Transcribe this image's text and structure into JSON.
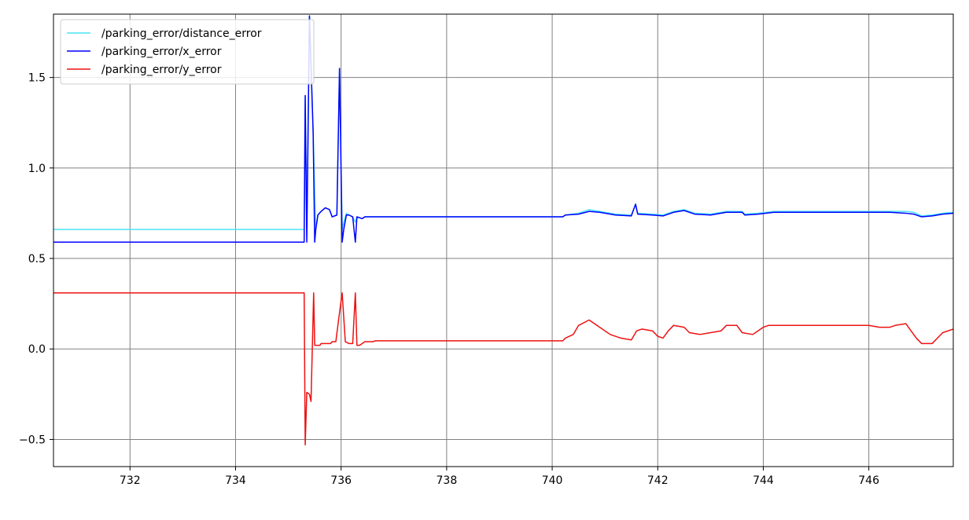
{
  "chart_data": {
    "type": "line",
    "title": "",
    "xlabel": "",
    "ylabel": "",
    "xlim": [
      730.55,
      747.6
    ],
    "ylim": [
      -0.65,
      1.85
    ],
    "xticks": [
      732,
      734,
      736,
      738,
      740,
      742,
      744,
      746
    ],
    "yticks": [
      -0.5,
      0.0,
      0.5,
      1.0,
      1.5
    ],
    "xtick_labels": [
      "732",
      "734",
      "736",
      "738",
      "740",
      "742",
      "744",
      "746"
    ],
    "ytick_labels": [
      "−0.5",
      "0.0",
      "0.5",
      "1.0",
      "1.5"
    ],
    "grid": true,
    "legend_position": "top-left",
    "series": [
      {
        "name": "/parking_error/distance_error",
        "color": "#4de4f5",
        "points": [
          [
            730.55,
            0.66
          ],
          [
            735.3,
            0.66
          ],
          [
            735.32,
            1.4
          ],
          [
            735.35,
            0.66
          ],
          [
            735.4,
            1.84
          ],
          [
            735.47,
            1.2
          ],
          [
            735.52,
            0.66
          ],
          [
            735.56,
            0.74
          ],
          [
            735.62,
            0.76
          ],
          [
            735.7,
            0.78
          ],
          [
            735.78,
            0.77
          ],
          [
            735.83,
            0.73
          ],
          [
            735.92,
            0.74
          ],
          [
            735.97,
            1.55
          ],
          [
            736.02,
            0.66
          ],
          [
            736.05,
            0.7
          ],
          [
            736.1,
            0.75
          ],
          [
            736.15,
            0.74
          ],
          [
            736.22,
            0.73
          ],
          [
            736.27,
            0.7
          ],
          [
            736.3,
            0.73
          ],
          [
            736.4,
            0.72
          ],
          [
            736.45,
            0.73
          ],
          [
            737.0,
            0.73
          ],
          [
            740.2,
            0.73
          ],
          [
            740.25,
            0.74
          ],
          [
            740.5,
            0.75
          ],
          [
            740.7,
            0.77
          ],
          [
            740.9,
            0.76
          ],
          [
            741.2,
            0.745
          ],
          [
            741.5,
            0.74
          ],
          [
            741.58,
            0.8
          ],
          [
            741.62,
            0.75
          ],
          [
            741.9,
            0.745
          ],
          [
            742.1,
            0.74
          ],
          [
            742.3,
            0.76
          ],
          [
            742.5,
            0.77
          ],
          [
            742.7,
            0.75
          ],
          [
            743.0,
            0.745
          ],
          [
            743.3,
            0.76
          ],
          [
            743.6,
            0.76
          ],
          [
            743.65,
            0.745
          ],
          [
            743.9,
            0.75
          ],
          [
            744.2,
            0.76
          ],
          [
            744.6,
            0.76
          ],
          [
            745.0,
            0.76
          ],
          [
            745.5,
            0.76
          ],
          [
            746.0,
            0.76
          ],
          [
            746.4,
            0.76
          ],
          [
            746.7,
            0.76
          ],
          [
            746.85,
            0.755
          ],
          [
            747.0,
            0.735
          ],
          [
            747.2,
            0.74
          ],
          [
            747.4,
            0.75
          ],
          [
            747.6,
            0.755
          ]
        ]
      },
      {
        "name": "/parking_error/x_error",
        "color": "#0000ff",
        "points": [
          [
            730.55,
            0.59
          ],
          [
            735.3,
            0.59
          ],
          [
            735.32,
            1.4
          ],
          [
            735.35,
            0.59
          ],
          [
            735.4,
            1.84
          ],
          [
            735.47,
            1.2
          ],
          [
            735.5,
            0.59
          ],
          [
            735.52,
            0.66
          ],
          [
            735.56,
            0.74
          ],
          [
            735.62,
            0.76
          ],
          [
            735.7,
            0.78
          ],
          [
            735.78,
            0.77
          ],
          [
            735.83,
            0.73
          ],
          [
            735.92,
            0.74
          ],
          [
            735.97,
            1.55
          ],
          [
            736.02,
            0.59
          ],
          [
            736.05,
            0.66
          ],
          [
            736.1,
            0.74
          ],
          [
            736.15,
            0.74
          ],
          [
            736.22,
            0.73
          ],
          [
            736.27,
            0.59
          ],
          [
            736.3,
            0.73
          ],
          [
            736.4,
            0.72
          ],
          [
            736.45,
            0.73
          ],
          [
            737.0,
            0.73
          ],
          [
            740.2,
            0.73
          ],
          [
            740.25,
            0.74
          ],
          [
            740.5,
            0.745
          ],
          [
            740.7,
            0.76
          ],
          [
            740.9,
            0.755
          ],
          [
            741.2,
            0.74
          ],
          [
            741.5,
            0.735
          ],
          [
            741.58,
            0.8
          ],
          [
            741.62,
            0.745
          ],
          [
            741.9,
            0.74
          ],
          [
            742.1,
            0.735
          ],
          [
            742.3,
            0.755
          ],
          [
            742.5,
            0.765
          ],
          [
            742.7,
            0.745
          ],
          [
            743.0,
            0.74
          ],
          [
            743.3,
            0.755
          ],
          [
            743.6,
            0.755
          ],
          [
            743.65,
            0.74
          ],
          [
            743.9,
            0.745
          ],
          [
            744.2,
            0.755
          ],
          [
            744.6,
            0.755
          ],
          [
            745.0,
            0.755
          ],
          [
            745.5,
            0.755
          ],
          [
            746.0,
            0.755
          ],
          [
            746.4,
            0.755
          ],
          [
            746.7,
            0.75
          ],
          [
            746.85,
            0.745
          ],
          [
            747.0,
            0.73
          ],
          [
            747.2,
            0.735
          ],
          [
            747.4,
            0.745
          ],
          [
            747.6,
            0.75
          ]
        ]
      },
      {
        "name": "/parking_error/y_error",
        "color": "#ee1111",
        "points": [
          [
            730.55,
            0.31
          ],
          [
            735.3,
            0.31
          ],
          [
            735.32,
            -0.53
          ],
          [
            735.35,
            -0.24
          ],
          [
            735.4,
            -0.25
          ],
          [
            735.43,
            -0.29
          ],
          [
            735.48,
            0.31
          ],
          [
            735.5,
            0.02
          ],
          [
            735.6,
            0.02
          ],
          [
            735.62,
            0.03
          ],
          [
            735.8,
            0.03
          ],
          [
            735.83,
            0.04
          ],
          [
            735.9,
            0.04
          ],
          [
            735.97,
            0.2
          ],
          [
            736.02,
            0.31
          ],
          [
            736.08,
            0.04
          ],
          [
            736.15,
            0.03
          ],
          [
            736.22,
            0.03
          ],
          [
            736.27,
            0.31
          ],
          [
            736.3,
            0.02
          ],
          [
            736.35,
            0.02
          ],
          [
            736.4,
            0.03
          ],
          [
            736.45,
            0.04
          ],
          [
            736.6,
            0.04
          ],
          [
            736.65,
            0.045
          ],
          [
            737.0,
            0.045
          ],
          [
            740.2,
            0.045
          ],
          [
            740.25,
            0.06
          ],
          [
            740.4,
            0.08
          ],
          [
            740.5,
            0.13
          ],
          [
            740.7,
            0.16
          ],
          [
            740.9,
            0.12
          ],
          [
            741.1,
            0.08
          ],
          [
            741.3,
            0.06
          ],
          [
            741.5,
            0.05
          ],
          [
            741.6,
            0.1
          ],
          [
            741.7,
            0.11
          ],
          [
            741.9,
            0.1
          ],
          [
            742.0,
            0.07
          ],
          [
            742.1,
            0.06
          ],
          [
            742.2,
            0.1
          ],
          [
            742.3,
            0.13
          ],
          [
            742.5,
            0.12
          ],
          [
            742.6,
            0.09
          ],
          [
            742.8,
            0.08
          ],
          [
            743.0,
            0.09
          ],
          [
            743.2,
            0.1
          ],
          [
            743.3,
            0.13
          ],
          [
            743.5,
            0.13
          ],
          [
            743.6,
            0.09
          ],
          [
            743.8,
            0.08
          ],
          [
            743.9,
            0.1
          ],
          [
            744.0,
            0.12
          ],
          [
            744.1,
            0.13
          ],
          [
            744.5,
            0.13
          ],
          [
            745.0,
            0.13
          ],
          [
            745.5,
            0.13
          ],
          [
            746.0,
            0.13
          ],
          [
            746.2,
            0.12
          ],
          [
            746.4,
            0.12
          ],
          [
            746.5,
            0.13
          ],
          [
            746.7,
            0.14
          ],
          [
            746.8,
            0.1
          ],
          [
            746.9,
            0.06
          ],
          [
            747.0,
            0.03
          ],
          [
            747.2,
            0.03
          ],
          [
            747.4,
            0.09
          ],
          [
            747.6,
            0.11
          ]
        ]
      }
    ]
  }
}
